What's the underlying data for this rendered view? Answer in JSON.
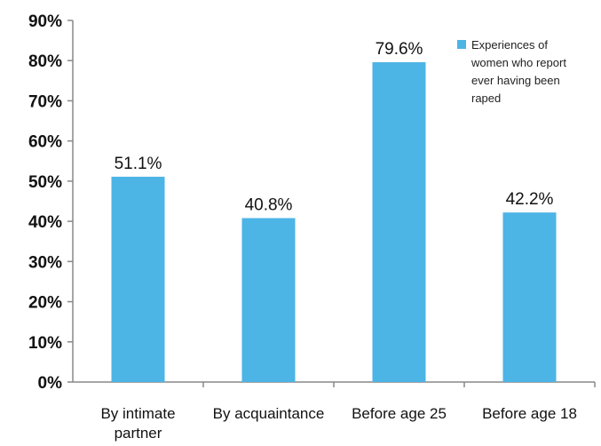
{
  "chart_data": {
    "type": "bar",
    "categories": [
      [
        "By intimate",
        "partner"
      ],
      [
        "By acquaintance"
      ],
      [
        "Before age 25"
      ],
      [
        "Before age 18"
      ]
    ],
    "series": [
      {
        "name": "Experiences of women who report ever having been raped",
        "name_lines": [
          "Experiences of",
          "women who report",
          "ever having been",
          "raped"
        ],
        "values": [
          51.1,
          40.8,
          79.6,
          42.2
        ],
        "labels": [
          "51.1%",
          "40.8%",
          "79.6%",
          "42.2%"
        ],
        "color": "#4db4e6"
      }
    ],
    "ylim": [
      0,
      90
    ],
    "yticks": [
      {
        "value": 0,
        "label": "0%"
      },
      {
        "value": 10,
        "label": "10%"
      },
      {
        "value": 20,
        "label": "20%"
      },
      {
        "value": 30,
        "label": "30%"
      },
      {
        "value": 40,
        "label": "40%"
      },
      {
        "value": 50,
        "label": "50%"
      },
      {
        "value": 60,
        "label": "60%"
      },
      {
        "value": 70,
        "label": "70%"
      },
      {
        "value": 80,
        "label": "80%"
      },
      {
        "value": 90,
        "label": "90%"
      }
    ],
    "grid": false,
    "legend": "top-right",
    "axis_color": "#888888"
  }
}
